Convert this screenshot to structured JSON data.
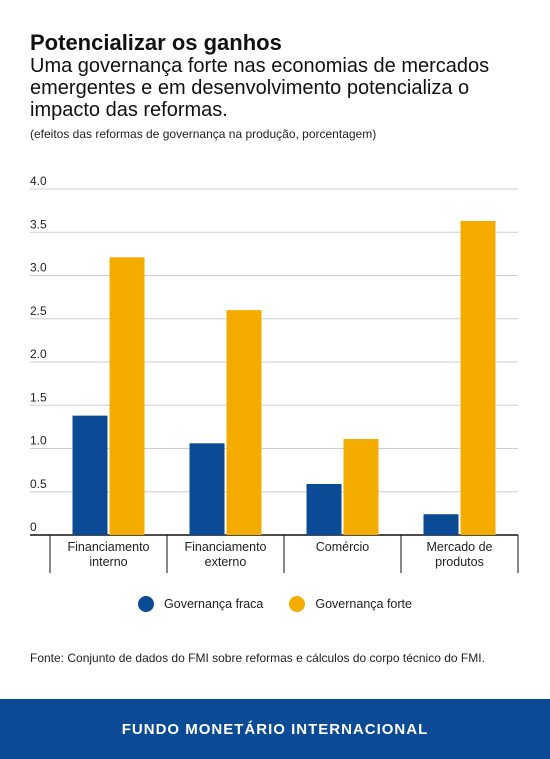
{
  "title": "Potencializar os ganhos",
  "subtitle": "Uma governança forte nas economias de mercados emergentes e em desenvolvimento potencializa o impacto das reformas.",
  "note": "(efeitos das reformas de governança na produção, porcentagem)",
  "source": "Fonte: Conjunto de dados do FMI sobre reformas e cálculos do corpo técnico do FMI.",
  "footer": "FUNDO MONETÁRIO INTERNACIONAL",
  "colors": {
    "weak": "#0b4a95",
    "strong": "#f5ac00"
  },
  "chart_data": {
    "type": "bar",
    "categories": [
      [
        "Financiamento",
        "interno"
      ],
      [
        "Financiamento",
        "externo"
      ],
      [
        "Comércio"
      ],
      [
        "Mercado de",
        "produtos"
      ]
    ],
    "series": [
      {
        "name": "Governança fraca",
        "values": [
          1.38,
          1.06,
          0.59,
          0.24
        ]
      },
      {
        "name": "Governança forte",
        "values": [
          3.21,
          2.6,
          1.11,
          3.63
        ]
      }
    ],
    "yticks": [
      "0",
      "0.5",
      "1.0",
      "1.5",
      "2.0",
      "2.5",
      "3.0",
      "3.5",
      "4.0"
    ],
    "ylim": [
      0,
      4
    ],
    "grid": true,
    "legend_position": "bottom"
  }
}
